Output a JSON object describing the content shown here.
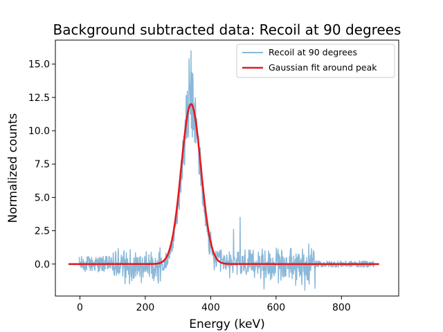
{
  "chart_data": {
    "type": "line",
    "title": "Background subtracted data: Recoil at 90 degrees",
    "xlabel": "Energy (keV)",
    "ylabel": "Normalized counts",
    "xlim": [
      -75,
      975
    ],
    "ylim": [
      -2.4,
      16.8
    ],
    "xticks": [
      0,
      200,
      400,
      600,
      800
    ],
    "yticks": [
      0.0,
      2.5,
      5.0,
      7.5,
      10.0,
      12.5,
      15.0
    ],
    "xtick_labels": [
      "0",
      "200",
      "400",
      "600",
      "800"
    ],
    "ytick_labels": [
      "0.0",
      "2.5",
      "5.0",
      "7.5",
      "10.0",
      "12.5",
      "15.0"
    ],
    "grid": false,
    "legend_position": "top-right",
    "series": [
      {
        "name": "Recoil at 90 degrees",
        "color": "#8ab8d9",
        "kind": "noisy-spectrum",
        "x_range": [
          -2,
          900
        ],
        "baseline": 0.0,
        "peak_center": 340,
        "peak_height": 12.0,
        "peak_sigma": 28,
        "peak_max_observed": 16.0,
        "noise_amplitude": 0.6,
        "notable_features": [
          {
            "x": 470,
            "y": 2.6
          },
          {
            "x": 490,
            "y": 3.5
          },
          {
            "x": 660,
            "y": -1.6
          },
          {
            "x": 700,
            "y": 1.5
          }
        ]
      },
      {
        "name": "Gaussian fit around peak",
        "color": "#e31a1c",
        "kind": "gaussian",
        "x_range": [
          -35,
          915
        ],
        "amplitude": 12.0,
        "center": 340,
        "sigma": 30
      }
    ]
  }
}
